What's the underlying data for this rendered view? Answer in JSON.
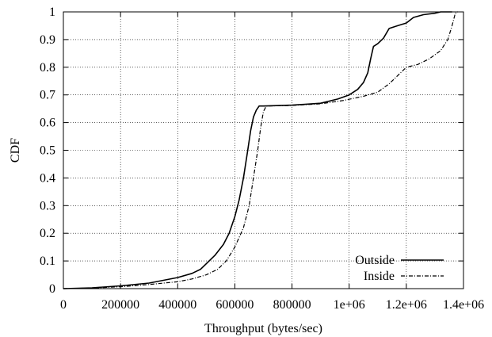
{
  "chart_data": {
    "type": "line",
    "title": "",
    "xlabel": "Throughput (bytes/sec)",
    "ylabel": "CDF",
    "xlim": [
      0,
      1400000
    ],
    "ylim": [
      0,
      1
    ],
    "grid": true,
    "legend_position": "bottom-right",
    "x_ticks": [
      {
        "value": 0,
        "label": "0"
      },
      {
        "value": 200000,
        "label": "200000"
      },
      {
        "value": 400000,
        "label": "400000"
      },
      {
        "value": 600000,
        "label": "600000"
      },
      {
        "value": 800000,
        "label": "800000"
      },
      {
        "value": 1000000,
        "label": "1e+06"
      },
      {
        "value": 1200000,
        "label": "1.2e+06"
      },
      {
        "value": 1400000,
        "label": "1.4e+06"
      }
    ],
    "y_ticks": [
      {
        "value": 0,
        "label": "0"
      },
      {
        "value": 0.1,
        "label": "0.1"
      },
      {
        "value": 0.2,
        "label": "0.2"
      },
      {
        "value": 0.3,
        "label": "0.3"
      },
      {
        "value": 0.4,
        "label": "0.4"
      },
      {
        "value": 0.5,
        "label": "0.5"
      },
      {
        "value": 0.6,
        "label": "0.6"
      },
      {
        "value": 0.7,
        "label": "0.7"
      },
      {
        "value": 0.8,
        "label": "0.8"
      },
      {
        "value": 0.9,
        "label": "0.9"
      },
      {
        "value": 1,
        "label": "1"
      }
    ],
    "series": [
      {
        "name": "Outside",
        "style": "solid",
        "color": "#000000",
        "points": [
          [
            0,
            0
          ],
          [
            100000,
            0.003
          ],
          [
            200000,
            0.01
          ],
          [
            300000,
            0.02
          ],
          [
            400000,
            0.04
          ],
          [
            450000,
            0.055
          ],
          [
            480000,
            0.07
          ],
          [
            500000,
            0.09
          ],
          [
            530000,
            0.12
          ],
          [
            560000,
            0.16
          ],
          [
            580000,
            0.2
          ],
          [
            600000,
            0.26
          ],
          [
            615000,
            0.32
          ],
          [
            630000,
            0.4
          ],
          [
            645000,
            0.5
          ],
          [
            655000,
            0.57
          ],
          [
            665000,
            0.62
          ],
          [
            675000,
            0.645
          ],
          [
            685000,
            0.66
          ],
          [
            700000,
            0.66
          ],
          [
            800000,
            0.663
          ],
          [
            900000,
            0.67
          ],
          [
            960000,
            0.685
          ],
          [
            1000000,
            0.7
          ],
          [
            1030000,
            0.72
          ],
          [
            1050000,
            0.745
          ],
          [
            1065000,
            0.78
          ],
          [
            1075000,
            0.83
          ],
          [
            1085000,
            0.875
          ],
          [
            1100000,
            0.885
          ],
          [
            1120000,
            0.905
          ],
          [
            1140000,
            0.94
          ],
          [
            1170000,
            0.95
          ],
          [
            1200000,
            0.96
          ],
          [
            1225000,
            0.98
          ],
          [
            1260000,
            0.99
          ],
          [
            1300000,
            0.995
          ],
          [
            1320000,
            1
          ],
          [
            1360000,
            1
          ]
        ]
      },
      {
        "name": "Inside",
        "style": "dash-dot",
        "color": "#000000",
        "points": [
          [
            0,
            0
          ],
          [
            100000,
            0.002
          ],
          [
            200000,
            0.007
          ],
          [
            300000,
            0.015
          ],
          [
            400000,
            0.025
          ],
          [
            450000,
            0.035
          ],
          [
            500000,
            0.05
          ],
          [
            540000,
            0.07
          ],
          [
            570000,
            0.1
          ],
          [
            600000,
            0.15
          ],
          [
            630000,
            0.22
          ],
          [
            650000,
            0.3
          ],
          [
            665000,
            0.4
          ],
          [
            680000,
            0.5
          ],
          [
            690000,
            0.58
          ],
          [
            700000,
            0.64
          ],
          [
            710000,
            0.66
          ],
          [
            800000,
            0.662
          ],
          [
            900000,
            0.668
          ],
          [
            980000,
            0.68
          ],
          [
            1050000,
            0.695
          ],
          [
            1100000,
            0.71
          ],
          [
            1140000,
            0.74
          ],
          [
            1170000,
            0.77
          ],
          [
            1200000,
            0.8
          ],
          [
            1240000,
            0.81
          ],
          [
            1280000,
            0.83
          ],
          [
            1320000,
            0.86
          ],
          [
            1345000,
            0.9
          ],
          [
            1360000,
            0.95
          ],
          [
            1370000,
            0.99
          ],
          [
            1375000,
            1
          ],
          [
            1380000,
            1
          ]
        ]
      }
    ]
  }
}
